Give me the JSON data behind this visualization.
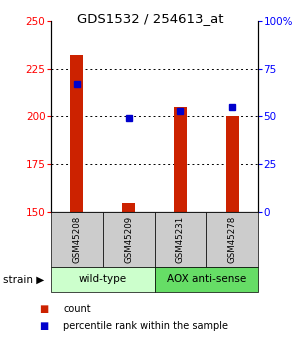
{
  "title": "GDS1532 / 254613_at",
  "samples": [
    "GSM45208",
    "GSM45209",
    "GSM45231",
    "GSM45278"
  ],
  "count_values": [
    232,
    155,
    205,
    200
  ],
  "percentile_values": [
    67,
    49,
    53,
    55
  ],
  "ylim_left": [
    150,
    250
  ],
  "ylim_right": [
    0,
    100
  ],
  "yticks_left": [
    150,
    175,
    200,
    225,
    250
  ],
  "yticks_right": [
    0,
    25,
    50,
    75,
    100
  ],
  "ytick_labels_right": [
    "0",
    "25",
    "50",
    "75",
    "100%"
  ],
  "bar_color": "#cc2200",
  "dot_color": "#0000cc",
  "bg_color": "#ffffff",
  "wildtype_color": "#ccffcc",
  "aox_color": "#66dd66",
  "label_box_color": "#cccccc",
  "group_labels": [
    "wild-type",
    "AOX anti-sense"
  ],
  "legend_count": "count",
  "legend_pct": "percentile rank within the sample",
  "bar_width": 0.25
}
